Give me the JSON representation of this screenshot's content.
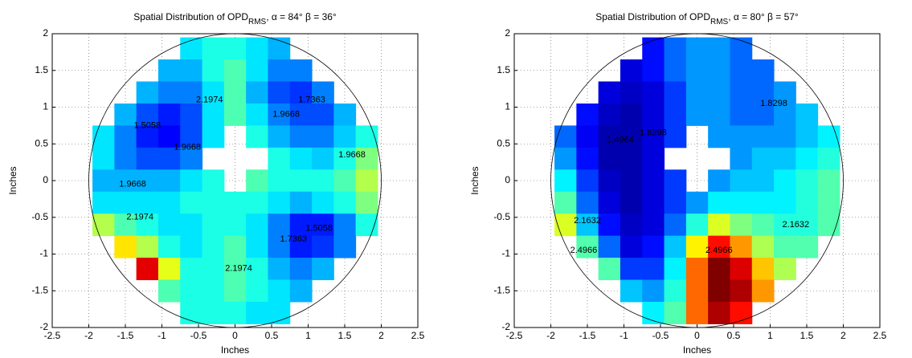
{
  "chart_data": [
    {
      "type": "heatmap",
      "title": "Spatial Distribution of OPD",
      "title_subscript": "RMS",
      "title_suffix": ", α = 84° β = 36°",
      "xlabel": "Inches",
      "ylabel": "Inches",
      "xlim": [
        -2.5,
        2.5
      ],
      "ylim": [
        -2,
        2
      ],
      "xticks": [
        -2.5,
        -2,
        -1.5,
        -1,
        -0.5,
        0,
        0.5,
        1,
        1.5,
        2,
        2.5
      ],
      "yticks": [
        -2,
        -1.5,
        -1,
        -0.5,
        0,
        0.5,
        1,
        1.5,
        2
      ],
      "grid": true,
      "colormap": "jet",
      "clim": [
        1.3,
        3.3
      ],
      "x": [
        -1.8,
        -1.5,
        -1.2,
        -0.9,
        -0.6,
        -0.3,
        0,
        0.3,
        0.6,
        0.9,
        1.2,
        1.5,
        1.8
      ],
      "y": [
        1.8,
        1.5,
        1.2,
        0.9,
        0.6,
        0.3,
        0,
        -0.3,
        -0.6,
        -0.9,
        -1.2,
        -1.5,
        -1.8
      ],
      "z": [
        [
          null,
          null,
          null,
          null,
          2.0,
          2.1,
          2.1,
          2.0,
          1.9,
          null,
          null,
          null,
          null
        ],
        [
          null,
          null,
          null,
          1.9,
          1.9,
          2.1,
          2.2,
          2.0,
          1.8,
          1.8,
          null,
          null,
          null
        ],
        [
          null,
          null,
          1.9,
          1.8,
          1.8,
          2.0,
          2.2,
          1.9,
          1.7,
          1.65,
          1.8,
          null,
          null
        ],
        [
          null,
          1.9,
          1.7,
          1.6,
          1.7,
          2.0,
          2.2,
          2.0,
          1.8,
          1.7,
          1.7,
          1.9,
          null
        ],
        [
          2.0,
          1.8,
          1.6,
          1.55,
          1.7,
          2.0,
          null,
          2.1,
          1.9,
          1.8,
          1.8,
          1.95,
          2.1
        ],
        [
          2.0,
          1.8,
          1.7,
          1.7,
          1.8,
          null,
          null,
          null,
          2.1,
          2.0,
          1.95,
          2.1,
          2.3
        ],
        [
          1.9,
          1.9,
          1.9,
          1.9,
          2.0,
          2.1,
          null,
          2.2,
          2.1,
          2.1,
          2.1,
          2.2,
          2.4
        ],
        [
          2.0,
          2.0,
          2.0,
          2.0,
          2.1,
          2.1,
          2.1,
          2.1,
          2.0,
          1.9,
          2.0,
          2.1,
          2.3
        ],
        [
          2.4,
          2.2,
          2.1,
          2.0,
          2.0,
          2.1,
          2.1,
          2.0,
          1.8,
          1.6,
          1.6,
          1.8,
          2.1
        ],
        [
          null,
          2.6,
          2.4,
          2.1,
          2.0,
          2.1,
          2.2,
          2.0,
          1.8,
          1.6,
          1.65,
          1.8,
          null
        ],
        [
          null,
          null,
          3.1,
          2.5,
          2.1,
          2.1,
          2.2,
          2.1,
          1.9,
          1.8,
          1.9,
          null,
          null
        ],
        [
          null,
          null,
          null,
          2.2,
          2.1,
          2.1,
          2.2,
          2.1,
          2.0,
          1.9,
          null,
          null,
          null
        ],
        [
          null,
          null,
          null,
          null,
          2.1,
          2.1,
          2.1,
          2.0,
          2.0,
          null,
          null,
          null,
          null
        ]
      ],
      "contour_labels": [
        {
          "value": 2.1974,
          "x": -0.35,
          "y": 1.1
        },
        {
          "value": 1.9668,
          "x": 0.7,
          "y": 0.9
        },
        {
          "value": 1.7363,
          "x": 1.05,
          "y": 1.1
        },
        {
          "value": 1.5058,
          "x": -1.2,
          "y": 0.75
        },
        {
          "value": 1.9668,
          "x": -0.65,
          "y": 0.45
        },
        {
          "value": 1.9668,
          "x": -1.4,
          "y": -0.05
        },
        {
          "value": 1.9668,
          "x": 1.6,
          "y": 0.35
        },
        {
          "value": 2.1974,
          "x": -1.3,
          "y": -0.5
        },
        {
          "value": 2.1974,
          "x": 0.05,
          "y": -1.2
        },
        {
          "value": 1.7363,
          "x": 0.8,
          "y": -0.8
        },
        {
          "value": 1.5058,
          "x": 1.15,
          "y": -0.65
        }
      ]
    },
    {
      "type": "heatmap",
      "title": "Spatial Distribution of OPD",
      "title_subscript": "RMS",
      "title_suffix": ", α = 80° β = 57°",
      "xlabel": "Inches",
      "ylabel": "Inches",
      "xlim": [
        -2.5,
        2.5
      ],
      "ylim": [
        -2,
        2
      ],
      "xticks": [
        -2.5,
        -2,
        -1.5,
        -1,
        -0.5,
        0,
        0.5,
        1,
        1.5,
        2,
        2.5
      ],
      "yticks": [
        -2,
        -1.5,
        -1,
        -0.5,
        0,
        0.5,
        1,
        1.5,
        2
      ],
      "grid": true,
      "colormap": "jet",
      "clim": [
        1.3,
        3.5
      ],
      "x": [
        -1.8,
        -1.5,
        -1.2,
        -0.9,
        -0.6,
        -0.3,
        0,
        0.3,
        0.6,
        0.9,
        1.2,
        1.5,
        1.8
      ],
      "y": [
        1.8,
        1.5,
        1.2,
        0.9,
        0.6,
        0.3,
        0,
        -0.3,
        -0.6,
        -0.9,
        -1.2,
        -1.5,
        -1.8
      ],
      "z": [
        [
          null,
          null,
          null,
          null,
          1.6,
          1.8,
          1.9,
          1.9,
          1.8,
          null,
          null,
          null,
          null
        ],
        [
          null,
          null,
          null,
          1.5,
          1.6,
          1.8,
          1.9,
          1.9,
          1.8,
          1.8,
          null,
          null,
          null
        ],
        [
          null,
          null,
          1.5,
          1.45,
          1.5,
          1.7,
          1.9,
          1.9,
          1.8,
          1.8,
          1.9,
          null,
          null
        ],
        [
          null,
          1.6,
          1.45,
          1.4,
          1.5,
          1.7,
          1.9,
          1.9,
          1.8,
          1.8,
          1.9,
          2.0,
          null
        ],
        [
          1.8,
          1.55,
          1.4,
          1.4,
          1.5,
          1.7,
          null,
          1.9,
          1.9,
          1.9,
          1.9,
          2.0,
          2.1
        ],
        [
          1.9,
          1.6,
          1.4,
          1.4,
          1.5,
          null,
          null,
          null,
          1.9,
          2.0,
          2.0,
          2.1,
          2.2
        ],
        [
          2.1,
          1.7,
          1.45,
          1.4,
          1.5,
          1.7,
          null,
          1.9,
          2.0,
          2.0,
          2.1,
          2.2,
          2.3
        ],
        [
          2.3,
          1.8,
          1.5,
          1.4,
          1.5,
          1.7,
          1.9,
          2.1,
          2.1,
          2.1,
          2.1,
          2.2,
          2.3
        ],
        [
          2.6,
          2.0,
          1.6,
          1.45,
          1.5,
          1.8,
          2.2,
          2.6,
          2.4,
          2.3,
          2.2,
          2.2,
          2.3
        ],
        [
          null,
          2.3,
          1.8,
          1.5,
          1.6,
          2.0,
          2.7,
          3.2,
          2.9,
          2.5,
          2.3,
          2.3,
          null
        ],
        [
          null,
          null,
          2.3,
          1.7,
          1.7,
          2.1,
          3.0,
          3.5,
          3.3,
          2.8,
          2.5,
          null,
          null
        ],
        [
          null,
          null,
          null,
          2.0,
          1.9,
          2.2,
          3.0,
          3.5,
          3.4,
          2.9,
          null,
          null,
          null
        ],
        [
          null,
          null,
          null,
          null,
          2.1,
          2.3,
          3.0,
          3.4,
          3.2,
          null,
          null,
          null,
          null
        ]
      ],
      "contour_labels": [
        {
          "value": 1.8298,
          "x": 1.05,
          "y": 1.05
        },
        {
          "value": 1.8298,
          "x": -0.6,
          "y": 0.65
        },
        {
          "value": 1.4964,
          "x": -1.05,
          "y": 0.55
        },
        {
          "value": 2.1632,
          "x": 1.35,
          "y": -0.6
        },
        {
          "value": 2.4966,
          "x": 0.3,
          "y": -0.95
        },
        {
          "value": 2.1632,
          "x": -1.5,
          "y": -0.55
        },
        {
          "value": 2.4966,
          "x": -1.55,
          "y": -0.95
        }
      ]
    }
  ]
}
